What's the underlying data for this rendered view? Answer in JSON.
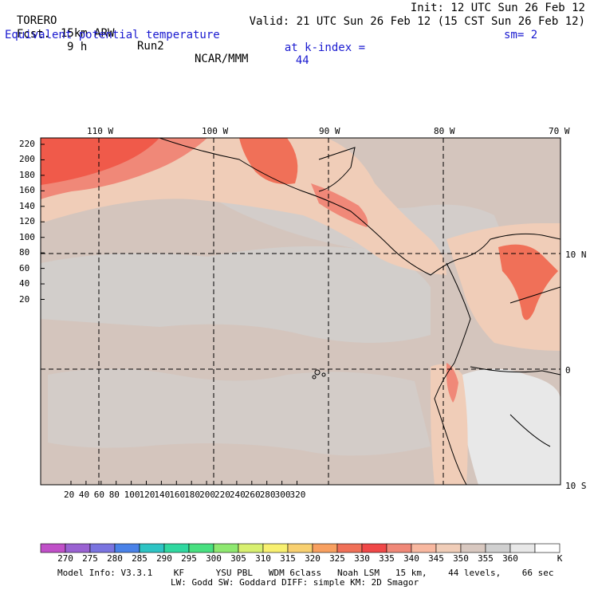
{
  "header": {
    "model": "TORERO",
    "resolution": "15km ARW",
    "run": "Run2",
    "org": "NCAR/MMM",
    "init": "Init: 12 UTC Sun 26 Feb 12",
    "fcst_label": "Fcst.",
    "fcst_value": "9 h",
    "valid": "Valid: 21 UTC Sun 26 Feb 12 (15 CST Sun 26 Feb 12)",
    "field": "Equivalent potential temperature",
    "level": "at k-index =",
    "level_value": "44",
    "smoothing": "sm= 2"
  },
  "map": {
    "top_lon_labels": [
      "110 W",
      "100 W",
      "90 W",
      "80 W",
      "70 W"
    ],
    "right_lat_labels": [
      "10 N",
      "0",
      "10 S"
    ],
    "y_ticks": [
      "220",
      "200",
      "180",
      "160",
      "140",
      "120",
      "100",
      "80",
      "60",
      "40",
      "20"
    ],
    "x_ticks": [
      "20",
      "40",
      "60",
      "80",
      "100",
      "120",
      "140",
      "160",
      "180",
      "200",
      "220",
      "240",
      "260",
      "280",
      "300",
      "320"
    ]
  },
  "colorbar": {
    "unit": "K",
    "labels": [
      "270",
      "275",
      "280",
      "285",
      "290",
      "295",
      "300",
      "305",
      "310",
      "315",
      "320",
      "325",
      "330",
      "335",
      "340",
      "345",
      "350",
      "355",
      "360"
    ],
    "colors": [
      "#c050c8",
      "#9a62d2",
      "#7a74e0",
      "#4a82e8",
      "#2ec4c4",
      "#30d8a0",
      "#48e080",
      "#8ee870",
      "#d8f070",
      "#f8f070",
      "#f8d070",
      "#f8a060",
      "#f07058",
      "#f04848",
      "#f08878",
      "#f8b8a0",
      "#f0cdb8",
      "#d8c8c0",
      "#d0d0d0",
      "#e8e8e8",
      "#ffffff"
    ]
  },
  "footer": {
    "line1": "Model Info: V3.3.1    KF      YSU PBL   WDM 6class   Noah LSM   15 km,    44 levels,    66 sec",
    "line2": "LW: Godd SW: Goddard DIFF: simple KM: 2D Smagor"
  }
}
